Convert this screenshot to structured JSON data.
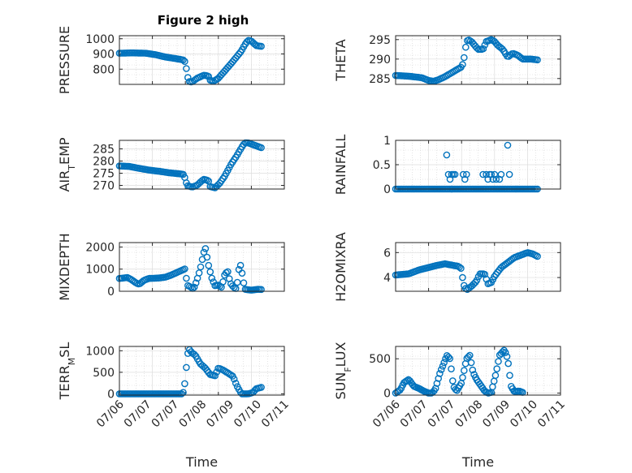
{
  "title": "Figure 2 high",
  "chart_data": [
    {
      "type": "scatter",
      "ylabel": "PRESSURE",
      "yticks": [
        "800",
        "900",
        "1000"
      ],
      "ylim": [
        700,
        1020
      ],
      "xlim": [
        0,
        5
      ],
      "xticklabels": [
        "07/06",
        "07/07",
        "07/07",
        "07/08",
        "07/09",
        "07/10",
        "07/11"
      ],
      "xticklabels_shown": false,
      "xlabel": "",
      "color": "#0072bd",
      "anchors": [
        [
          0,
          905
        ],
        [
          0.4,
          907
        ],
        [
          0.8,
          905
        ],
        [
          1.1,
          895
        ],
        [
          1.4,
          880
        ],
        [
          1.7,
          870
        ],
        [
          1.95,
          860
        ],
        [
          2.0,
          845
        ],
        [
          2.05,
          775
        ],
        [
          2.1,
          720
        ],
        [
          2.2,
          715
        ],
        [
          2.35,
          740
        ],
        [
          2.55,
          760
        ],
        [
          2.7,
          755
        ],
        [
          2.75,
          728
        ],
        [
          2.85,
          720
        ],
        [
          3.0,
          740
        ],
        [
          3.2,
          790
        ],
        [
          3.4,
          840
        ],
        [
          3.55,
          880
        ],
        [
          3.7,
          920
        ],
        [
          3.8,
          960
        ],
        [
          3.9,
          990
        ],
        [
          4.0,
          985
        ],
        [
          4.15,
          955
        ],
        [
          4.3,
          950
        ]
      ]
    },
    {
      "type": "scatter",
      "ylabel": "THETA",
      "yticks": [
        "285",
        "290",
        "295"
      ],
      "ylim": [
        283.5,
        296
      ],
      "xlim": [
        0,
        5
      ],
      "xlabel": "",
      "color": "#0072bd",
      "anchors": [
        [
          0,
          285.8
        ],
        [
          0.4,
          285.6
        ],
        [
          0.8,
          285.2
        ],
        [
          1.0,
          284.5
        ],
        [
          1.15,
          284.3
        ],
        [
          1.3,
          284.7
        ],
        [
          1.5,
          285.5
        ],
        [
          1.7,
          286.5
        ],
        [
          1.9,
          287.5
        ],
        [
          2.0,
          288
        ],
        [
          2.05,
          289
        ],
        [
          2.1,
          291.5
        ],
        [
          2.15,
          294.5
        ],
        [
          2.2,
          295
        ],
        [
          2.3,
          294.5
        ],
        [
          2.5,
          292.5
        ],
        [
          2.65,
          292.5
        ],
        [
          2.75,
          294.5
        ],
        [
          2.9,
          295
        ],
        [
          3.0,
          294.5
        ],
        [
          3.1,
          293.5
        ],
        [
          3.25,
          292.5
        ],
        [
          3.4,
          290.5
        ],
        [
          3.55,
          291.5
        ],
        [
          3.7,
          291
        ],
        [
          3.85,
          290
        ],
        [
          4.1,
          290
        ],
        [
          4.3,
          289.8
        ]
      ]
    },
    {
      "type": "scatter",
      "ylabel": "AIR_TEMP",
      "yticks": [
        "270",
        "275",
        "280",
        "285"
      ],
      "ylim": [
        268.5,
        288.5
      ],
      "xlim": [
        0,
        5
      ],
      "xlabel": "",
      "color": "#0072bd",
      "anchors": [
        [
          0,
          278
        ],
        [
          0.3,
          277.8
        ],
        [
          0.6,
          277
        ],
        [
          0.9,
          276.3
        ],
        [
          1.2,
          275.8
        ],
        [
          1.5,
          275.2
        ],
        [
          1.8,
          274.8
        ],
        [
          1.95,
          274.5
        ],
        [
          2.0,
          272.5
        ],
        [
          2.05,
          270
        ],
        [
          2.2,
          269.3
        ],
        [
          2.35,
          270
        ],
        [
          2.55,
          272.5
        ],
        [
          2.7,
          272
        ],
        [
          2.75,
          269.5
        ],
        [
          2.9,
          269
        ],
        [
          3.05,
          271
        ],
        [
          3.2,
          274
        ],
        [
          3.4,
          279
        ],
        [
          3.55,
          282
        ],
        [
          3.7,
          285.5
        ],
        [
          3.8,
          287.5
        ],
        [
          3.9,
          287.5
        ],
        [
          4.1,
          286.5
        ],
        [
          4.3,
          285.5
        ]
      ]
    },
    {
      "type": "scatter",
      "ylabel": "RAINFALL",
      "yticks": [
        "0",
        "0.5",
        "1"
      ],
      "ylim": [
        0,
        1
      ],
      "xlim": [
        0,
        5
      ],
      "xlabel": "",
      "color": "#0072bd",
      "anchors": [
        [
          0,
          0
        ],
        [
          4.3,
          0
        ]
      ],
      "extra_points": [
        [
          1.55,
          0.7
        ],
        [
          1.6,
          0.3
        ],
        [
          1.65,
          0.2
        ],
        [
          1.7,
          0.3
        ],
        [
          1.75,
          0.3
        ],
        [
          1.8,
          0.3
        ],
        [
          1.7,
          0.0
        ],
        [
          2.05,
          0.3
        ],
        [
          2.1,
          0.2
        ],
        [
          2.15,
          0.3
        ],
        [
          2.65,
          0.3
        ],
        [
          2.75,
          0.3
        ],
        [
          2.8,
          0.2
        ],
        [
          2.85,
          0.3
        ],
        [
          2.95,
          0.2
        ],
        [
          3.0,
          0.3
        ],
        [
          3.05,
          0.2
        ],
        [
          3.15,
          0.2
        ],
        [
          3.2,
          0.3
        ],
        [
          3.4,
          0.9
        ],
        [
          3.45,
          0.3
        ],
        [
          2.9,
          0.3
        ]
      ]
    },
    {
      "type": "scatter",
      "ylabel": "MIXDEPTH",
      "yticks": [
        "0",
        "1000",
        "2000"
      ],
      "ylim": [
        0,
        2200
      ],
      "xlim": [
        0,
        5
      ],
      "xlabel": "",
      "color": "#0072bd",
      "anchors": [
        [
          0,
          580
        ],
        [
          0.25,
          620
        ],
        [
          0.35,
          540
        ],
        [
          0.5,
          380
        ],
        [
          0.6,
          320
        ],
        [
          0.75,
          500
        ],
        [
          0.9,
          580
        ],
        [
          1.2,
          600
        ],
        [
          1.4,
          640
        ],
        [
          1.55,
          720
        ],
        [
          1.7,
          820
        ],
        [
          1.85,
          920
        ],
        [
          2.0,
          1020
        ],
        [
          2.05,
          280
        ],
        [
          2.15,
          200
        ],
        [
          2.25,
          100
        ],
        [
          2.35,
          500
        ],
        [
          2.45,
          1000
        ],
        [
          2.55,
          1700
        ],
        [
          2.6,
          2000
        ],
        [
          2.7,
          1200
        ],
        [
          2.8,
          600
        ],
        [
          2.9,
          250
        ],
        [
          3.0,
          280
        ],
        [
          3.1,
          180
        ],
        [
          3.2,
          800
        ],
        [
          3.3,
          900
        ],
        [
          3.35,
          400
        ],
        [
          3.45,
          200
        ],
        [
          3.55,
          100
        ],
        [
          3.6,
          700
        ],
        [
          3.65,
          1300
        ],
        [
          3.7,
          1000
        ],
        [
          3.8,
          90
        ],
        [
          4.0,
          50
        ],
        [
          4.2,
          90
        ],
        [
          4.3,
          80
        ]
      ]
    },
    {
      "type": "scatter",
      "ylabel": "H2OMIXRA",
      "yticks": [
        "4",
        "6"
      ],
      "ylim": [
        2.9,
        6.8
      ],
      "xlim": [
        0,
        5
      ],
      "xlabel": "",
      "color": "#0072bd",
      "anchors": [
        [
          0,
          4.2
        ],
        [
          0.4,
          4.3
        ],
        [
          0.7,
          4.6
        ],
        [
          1.0,
          4.8
        ],
        [
          1.3,
          5.0
        ],
        [
          1.5,
          5.1
        ],
        [
          1.7,
          5.0
        ],
        [
          1.9,
          4.9
        ],
        [
          2.0,
          4.7
        ],
        [
          2.05,
          3.5
        ],
        [
          2.15,
          3.0
        ],
        [
          2.3,
          3.3
        ],
        [
          2.45,
          3.7
        ],
        [
          2.55,
          4.3
        ],
        [
          2.7,
          4.3
        ],
        [
          2.8,
          3.5
        ],
        [
          2.9,
          3.6
        ],
        [
          3.0,
          4.1
        ],
        [
          3.2,
          4.8
        ],
        [
          3.4,
          5.2
        ],
        [
          3.6,
          5.6
        ],
        [
          3.8,
          5.8
        ],
        [
          4.0,
          6.0
        ],
        [
          4.15,
          5.9
        ],
        [
          4.3,
          5.7
        ]
      ]
    },
    {
      "type": "scatter",
      "ylabel": "TERR_MSL",
      "yticks": [
        "0",
        "500",
        "1000"
      ],
      "ylim": [
        -30,
        1100
      ],
      "xlim": [
        0,
        5
      ],
      "xticklabels": [
        "07/06",
        "07/07",
        "07/07",
        "07/08",
        "07/09",
        "07/10",
        "07/11"
      ],
      "xticklabels_shown": true,
      "xlabel": "Time",
      "color": "#0072bd",
      "anchors": [
        [
          0,
          0
        ],
        [
          1.9,
          0
        ],
        [
          1.95,
          50
        ],
        [
          2.0,
          350
        ],
        [
          2.05,
          800
        ],
        [
          2.1,
          1050
        ],
        [
          2.2,
          950
        ],
        [
          2.3,
          900
        ],
        [
          2.45,
          700
        ],
        [
          2.6,
          600
        ],
        [
          2.75,
          450
        ],
        [
          2.9,
          420
        ],
        [
          3.0,
          600
        ],
        [
          3.15,
          550
        ],
        [
          3.3,
          480
        ],
        [
          3.45,
          400
        ],
        [
          3.55,
          200
        ],
        [
          3.7,
          0
        ],
        [
          3.9,
          0
        ],
        [
          4.05,
          30
        ],
        [
          4.15,
          120
        ],
        [
          4.3,
          150
        ]
      ]
    },
    {
      "type": "scatter",
      "ylabel": "SUN_FLUX",
      "yticks": [
        "0",
        "500"
      ],
      "ylim": [
        -30,
        680
      ],
      "xlim": [
        0,
        5
      ],
      "xticklabels": [
        "07/06",
        "07/07",
        "07/07",
        "07/08",
        "07/09",
        "07/10",
        "07/11"
      ],
      "xticklabels_shown": true,
      "xlabel": "Time",
      "color": "#0072bd",
      "anchors": [
        [
          0,
          0
        ],
        [
          0.15,
          50
        ],
        [
          0.25,
          150
        ],
        [
          0.4,
          200
        ],
        [
          0.55,
          100
        ],
        [
          0.7,
          70
        ],
        [
          0.85,
          30
        ],
        [
          1.0,
          0
        ],
        [
          1.1,
          0
        ],
        [
          1.2,
          50
        ],
        [
          1.35,
          300
        ],
        [
          1.5,
          480
        ],
        [
          1.55,
          550
        ],
        [
          1.65,
          500
        ],
        [
          1.75,
          100
        ],
        [
          1.85,
          30
        ],
        [
          2.0,
          150
        ],
        [
          2.15,
          500
        ],
        [
          2.25,
          550
        ],
        [
          2.35,
          300
        ],
        [
          2.45,
          200
        ],
        [
          2.6,
          100
        ],
        [
          2.7,
          30
        ],
        [
          2.8,
          0
        ],
        [
          2.9,
          10
        ],
        [
          3.05,
          300
        ],
        [
          3.15,
          550
        ],
        [
          3.3,
          630
        ],
        [
          3.4,
          500
        ],
        [
          3.5,
          100
        ],
        [
          3.6,
          20
        ],
        [
          3.75,
          30
        ],
        [
          3.85,
          10
        ]
      ]
    }
  ]
}
